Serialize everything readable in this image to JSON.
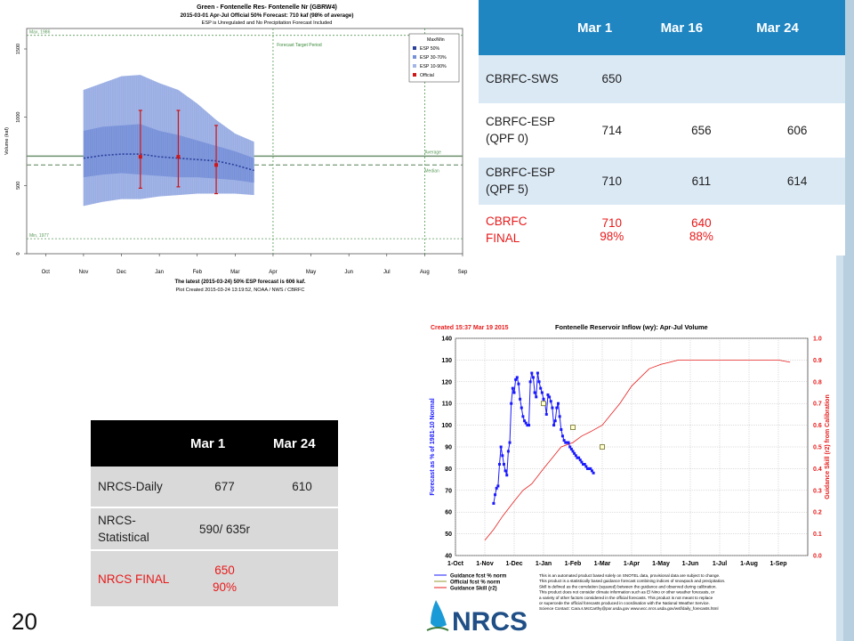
{
  "slide_number": "20",
  "cbrfc_table": {
    "headers": [
      "",
      "Mar 1",
      "Mar 16",
      "Mar 24"
    ],
    "rows": [
      {
        "label": "CBRFC-SWS",
        "values": [
          "650",
          "",
          ""
        ]
      },
      {
        "label": "CBRFC-ESP (QPF 0)",
        "values": [
          "714",
          "656",
          "606"
        ]
      },
      {
        "label": "CBRFC-ESP (QPF 5)",
        "values": [
          "710",
          "611",
          "614"
        ]
      },
      {
        "label": "CBRFC FINAL",
        "values": [
          "710\n98%",
          "640\n88%",
          ""
        ],
        "final": true
      }
    ]
  },
  "nrcs_table": {
    "headers": [
      "",
      "Mar 1",
      "Mar 24"
    ],
    "rows": [
      {
        "label": "NRCS-Daily",
        "values": [
          "677",
          "610"
        ]
      },
      {
        "label": "NRCS-Statistical",
        "values": [
          "590/ 635r",
          ""
        ]
      },
      {
        "label": "NRCS FINAL",
        "values": [
          "650\n90%",
          ""
        ],
        "final": true
      }
    ]
  },
  "chart_data": [
    {
      "type": "line",
      "title": "Green - Fontenelle Res- Fontenelle Nr (GBRW4)",
      "subtitle": "2015-03-01 Apr-Jul Official 50% Forecast: 710 kaf (98% of average)",
      "subtitle2": "ESP is Unregulated and No Precipitation Forecast Included",
      "ylabel": "Volume (kaf)",
      "footer1": "The latest (2015-03-24) 50% ESP forecast is 606 kaf.",
      "footer2": "Plot Created 2015-03-24 13:19:52, NOAA / NWS / CBRFC",
      "categories": [
        "Oct",
        "Nov",
        "Dec",
        "Jan",
        "Feb",
        "Mar",
        "Apr",
        "May",
        "Jun",
        "Jul",
        "Aug",
        "Sep"
      ],
      "yticks": [
        0,
        500,
        1000,
        1500
      ],
      "ylim": [
        0,
        1650
      ],
      "legend": [
        "Max/Min",
        "ESP 50%",
        "ESP 30-70%",
        "ESP 10-90%",
        "Official"
      ],
      "annotations": {
        "max": "Max, 1986",
        "min": "Min, 1977",
        "average": "Average",
        "median": "Median",
        "target": "Forecast Target Period"
      },
      "reference_lines": {
        "max": 1600,
        "min": 110,
        "average": 715,
        "median": 650
      },
      "esp_envelope": {
        "start": 1.5,
        "end": 6.0,
        "p90": [
          [
            1.5,
            1200
          ],
          [
            2.0,
            1250
          ],
          [
            2.5,
            1300
          ],
          [
            3.0,
            1310
          ],
          [
            3.5,
            1250
          ],
          [
            4.0,
            1200
          ],
          [
            4.5,
            1100
          ],
          [
            5.0,
            980
          ],
          [
            5.5,
            880
          ],
          [
            6.0,
            820
          ]
        ],
        "p70": [
          [
            1.5,
            900
          ],
          [
            2.0,
            930
          ],
          [
            2.5,
            940
          ],
          [
            3.0,
            950
          ],
          [
            3.5,
            900
          ],
          [
            4.0,
            870
          ],
          [
            4.5,
            830
          ],
          [
            5.0,
            790
          ],
          [
            5.5,
            750
          ],
          [
            6.0,
            700
          ]
        ],
        "p50": [
          [
            1.5,
            700
          ],
          [
            2.0,
            720
          ],
          [
            2.5,
            730
          ],
          [
            3.0,
            730
          ],
          [
            3.5,
            710
          ],
          [
            4.0,
            700
          ],
          [
            4.5,
            690
          ],
          [
            5.0,
            680
          ],
          [
            5.5,
            650
          ],
          [
            6.0,
            610
          ]
        ],
        "p30": [
          [
            1.5,
            560
          ],
          [
            2.0,
            580
          ],
          [
            2.5,
            590
          ],
          [
            3.0,
            580
          ],
          [
            3.5,
            570
          ],
          [
            4.0,
            560
          ],
          [
            4.5,
            560
          ],
          [
            5.0,
            550
          ],
          [
            5.5,
            540
          ],
          [
            6.0,
            520
          ]
        ],
        "p10": [
          [
            1.5,
            350
          ],
          [
            2.0,
            380
          ],
          [
            2.5,
            400
          ],
          [
            3.0,
            400
          ],
          [
            3.5,
            420
          ],
          [
            4.0,
            430
          ],
          [
            4.5,
            440
          ],
          [
            5.0,
            440
          ],
          [
            5.5,
            440
          ],
          [
            6.0,
            430
          ]
        ]
      },
      "official": [
        {
          "x": 3.0,
          "value": 710,
          "high": 1050,
          "low": 480
        },
        {
          "x": 4.0,
          "value": 710,
          "high": 1050,
          "low": 490
        },
        {
          "x": 5.0,
          "value": 650,
          "high": 940,
          "low": 440
        }
      ]
    },
    {
      "type": "line",
      "title": "Fontenelle Reservoir Inflow (wy): Apr-Jul Volume",
      "created": "Created 15:37 Mar 19 2015",
      "ylabel": "Forecast as % of 1981-10 Normal",
      "y2label": "Guidance Skill (r2) from Calibration",
      "categories": [
        "1-Oct",
        "1-Nov",
        "1-Dec",
        "1-Jan",
        "1-Feb",
        "1-Mar",
        "1-Apr",
        "1-May",
        "1-Jun",
        "1-Jul",
        "1-Aug",
        "1-Sep"
      ],
      "ylim": [
        40,
        140
      ],
      "yticks": [
        40,
        50,
        60,
        70,
        80,
        90,
        100,
        110,
        120,
        130,
        140
      ],
      "y2lim": [
        0.0,
        1.0
      ],
      "y2ticks": [
        "0.0",
        "0.1",
        "0.2",
        "0.3",
        "0.4",
        "0.5",
        "0.6",
        "0.7",
        "0.8",
        "0.9",
        "1.0"
      ],
      "legend": [
        "Guidance fcst % norm",
        "Official fcst % norm",
        "Guidance Skill (r2)"
      ],
      "series": [
        {
          "name": "Guidance fcst % norm",
          "color": "#1a1aff",
          "x": [
            1.3,
            1.35,
            1.4,
            1.45,
            1.5,
            1.55,
            1.6,
            1.65,
            1.7,
            1.75,
            1.8,
            1.85,
            1.9,
            1.95,
            2.0,
            2.05,
            2.1,
            2.15,
            2.2,
            2.25,
            2.3,
            2.35,
            2.4,
            2.45,
            2.5,
            2.55,
            2.6,
            2.65,
            2.7,
            2.75,
            2.8,
            2.85,
            2.9,
            2.95,
            3.0,
            3.05,
            3.1,
            3.15,
            3.2,
            3.25,
            3.3,
            3.35,
            3.4,
            3.45,
            3.5,
            3.55,
            3.6,
            3.65,
            3.7,
            3.75,
            3.8,
            3.85,
            3.9,
            3.95,
            4.0,
            4.05,
            4.1,
            4.15,
            4.2,
            4.25,
            4.3,
            4.35,
            4.4,
            4.45,
            4.5,
            4.55,
            4.6,
            4.65,
            4.7
          ],
          "y": [
            64,
            68,
            71,
            72,
            82,
            90,
            86,
            82,
            79,
            77,
            88,
            92,
            110,
            117,
            115,
            121,
            122,
            119,
            112,
            108,
            104,
            102,
            101,
            100,
            100,
            120,
            124,
            122,
            115,
            113,
            124,
            120,
            117,
            115,
            112,
            110,
            105,
            114,
            113,
            111,
            108,
            100,
            102,
            108,
            110,
            104,
            98,
            95,
            93,
            92,
            92,
            92,
            90,
            89,
            88,
            87,
            86,
            85,
            85,
            84,
            83,
            82,
            82,
            81,
            80,
            80,
            80,
            79,
            78
          ]
        },
        {
          "name": "Official fcst % norm",
          "color": "#999933",
          "x": [
            3.0,
            4.0,
            5.0
          ],
          "y": [
            110,
            99,
            90
          ]
        },
        {
          "name": "Guidance Skill (r2)",
          "color": "#e81c1c",
          "axis": "y2",
          "x": [
            1.0,
            1.3,
            1.6,
            2.0,
            2.3,
            2.6,
            3.0,
            3.3,
            3.6,
            4.0,
            4.3,
            4.6,
            5.0,
            5.3,
            5.6,
            6.0,
            6.3,
            6.6,
            7.0,
            7.3,
            7.6,
            8.0,
            8.5,
            9.0,
            9.5,
            10.0,
            10.5,
            11.0,
            11.4
          ],
          "y": [
            0.07,
            0.12,
            0.18,
            0.25,
            0.3,
            0.33,
            0.4,
            0.45,
            0.5,
            0.52,
            0.55,
            0.57,
            0.6,
            0.65,
            0.7,
            0.78,
            0.82,
            0.86,
            0.88,
            0.89,
            0.9,
            0.9,
            0.9,
            0.9,
            0.9,
            0.9,
            0.9,
            0.9,
            0.89
          ]
        }
      ],
      "notes": [
        "This is an automated product based solely on SNOTEL data, provisional data are subject to change.",
        "This product is a statistically based guidance forecast combining indices of snowpack and precipitation.",
        "Skill is defined as the correlation (squared) between the guidance and observed during calibration.",
        "This product does not consider climate information such as El Nino or other weather forecasts, or",
        "a variety of other factors considered in the official forecasts. This product is not meant to replace",
        "or supercede the official forecasts produced in coordination with the National Weather Service.",
        "Science Contact: Cara.s.McCarthy@por.usda.gov www.wcc.nrcs.usda.gov/wsf/daily_forecasts.html"
      ],
      "logo": "NRCS"
    }
  ]
}
